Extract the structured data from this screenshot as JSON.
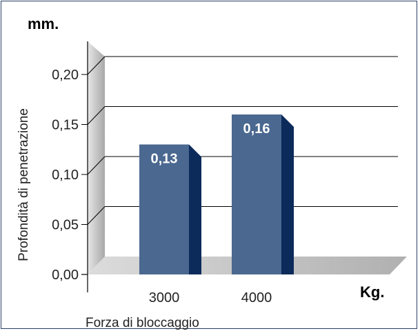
{
  "chart_data": {
    "type": "bar",
    "categories": [
      "3000",
      "4000"
    ],
    "values": [
      0.13,
      0.16
    ],
    "data_labels": [
      "0,13",
      "0,16"
    ],
    "yticks": [
      "0,00",
      "0,05",
      "0,10",
      "0,15",
      "0,20"
    ],
    "ytick_values": [
      0,
      0.05,
      0.1,
      0.15,
      0.2
    ],
    "ylim": [
      0,
      0.2
    ],
    "ylabel": "Profondità di penetrazione",
    "xlabel": "Forza di bloccaggio",
    "y_unit": "mm.",
    "x_unit": "Kg.",
    "grid": true,
    "colors": {
      "bar_front": "#4a6890",
      "bar_side": "#0c2a5a",
      "bar_top": "#0c2a5a",
      "wall": "#b8b8b8",
      "floor": "#b8b8b8",
      "gridline": "#000000",
      "frame": "#2a3f66"
    }
  }
}
